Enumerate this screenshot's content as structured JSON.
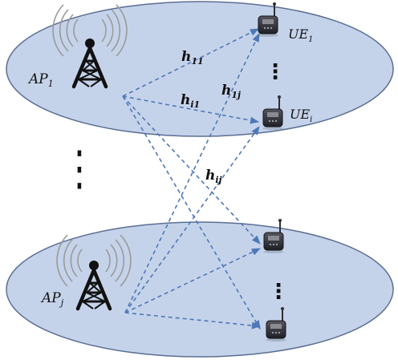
{
  "labels": {
    "ap1": {
      "base": "AP",
      "sub": "1"
    },
    "apj": {
      "base": "AP",
      "sub": "j"
    },
    "ue1": {
      "base": "UE",
      "sub": "1"
    },
    "uei": {
      "base": "UE",
      "sub": "i"
    },
    "h11": {
      "base": "h",
      "sub": "11"
    },
    "h1j": {
      "base": "h",
      "sub": "1j"
    },
    "hi1": {
      "base": "h",
      "sub": "i1"
    },
    "hij": {
      "base": "h",
      "sub": "ij"
    }
  },
  "ellipsis_glyph": "⋮",
  "icons": {
    "ap1": "cell-tower-icon",
    "apj": "cell-tower-icon",
    "ues": [
      "mobile-terminal-icon",
      "mobile-terminal-icon",
      "mobile-terminal-icon",
      "mobile-terminal-icon"
    ]
  },
  "colors": {
    "cell_fill": "#c5d3ea",
    "cell_stroke": "#5b6e93",
    "link": "#4e78b8",
    "tower": "#111111",
    "waves": "#9a9a9a",
    "device": "#2e2e35"
  }
}
